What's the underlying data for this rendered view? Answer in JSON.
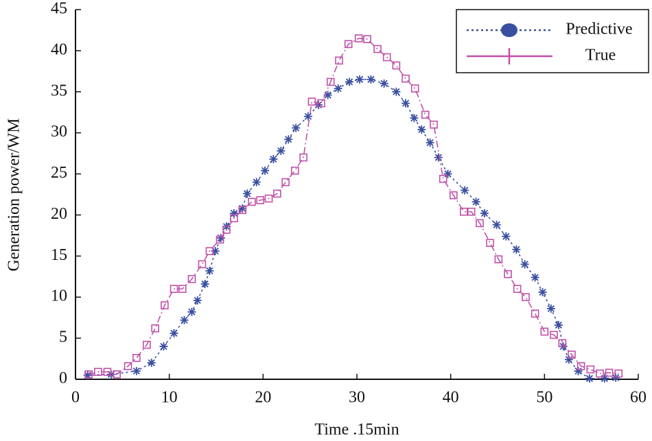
{
  "chart_data": {
    "type": "line",
    "xlabel": "Time .15min",
    "ylabel": "Generation power/WM",
    "xlim": [
      0,
      60
    ],
    "xticks": [
      0,
      10,
      20,
      30,
      40,
      50,
      60
    ],
    "ylim": [
      0,
      45
    ],
    "yticks": [
      0,
      5,
      10,
      15,
      20,
      25,
      30,
      35,
      40,
      45
    ],
    "legend": "upper right",
    "series": [
      {
        "name": "Predictive",
        "color": "#3a4fa0",
        "x": [
          1.3,
          3.8,
          6.5,
          8.1,
          9.4,
          10.5,
          11.6,
          12.4,
          13.0,
          13.8,
          14.3,
          14.9,
          15.5,
          16.1,
          16.9,
          17.8,
          18.3,
          19.3,
          20.2,
          21.1,
          21.9,
          22.7,
          23.5,
          24.8,
          25.9,
          26.9,
          28.0,
          29.2,
          30.3,
          31.5,
          32.9,
          34.2,
          35.2,
          36.1,
          36.9,
          37.8,
          38.7,
          39.7,
          41.5,
          42.7,
          43.6,
          44.9,
          45.9,
          47.0,
          47.9,
          49.0,
          49.8,
          50.7,
          51.5,
          52.0,
          52.6,
          53.6,
          54.8,
          56.4,
          57.6
        ],
        "values": [
          0.5,
          0.6,
          1.0,
          2.0,
          4.0,
          5.6,
          7.2,
          8.2,
          9.6,
          11.6,
          13.2,
          15.6,
          17.2,
          18.6,
          20.2,
          20.8,
          22.6,
          24.0,
          25.4,
          26.8,
          27.8,
          29.2,
          30.6,
          32.0,
          33.4,
          34.6,
          35.4,
          36.2,
          36.5,
          36.5,
          36.0,
          35.0,
          33.6,
          31.8,
          30.4,
          28.8,
          27.0,
          25.0,
          23.0,
          21.6,
          20.2,
          18.8,
          17.4,
          15.8,
          14.0,
          12.4,
          10.6,
          8.6,
          6.6,
          4.0,
          2.4,
          1.0,
          0.1,
          0.1,
          0.2
        ]
      },
      {
        "name": "True",
        "color": "#c050a8",
        "x": [
          1.4,
          2.4,
          3.4,
          4.4,
          5.6,
          6.5,
          7.6,
          8.5,
          9.5,
          10.5,
          11.4,
          12.4,
          13.5,
          14.3,
          15.4,
          16.1,
          16.9,
          17.8,
          18.8,
          19.7,
          20.6,
          21.5,
          22.4,
          23.4,
          24.3,
          25.2,
          26.2,
          27.2,
          28.1,
          29.1,
          30.2,
          31.1,
          32.2,
          33.2,
          34.2,
          35.2,
          36.2,
          37.3,
          38.2,
          39.2,
          40.3,
          41.4,
          42.2,
          43.1,
          44.2,
          45.1,
          46.1,
          47.1,
          48.0,
          49.0,
          50.0,
          51.0,
          51.9,
          52.9,
          53.9,
          54.9,
          55.9,
          56.9,
          57.9
        ],
        "values": [
          0.6,
          0.9,
          0.9,
          0.6,
          1.6,
          2.6,
          4.2,
          6.2,
          9.0,
          11.0,
          11.0,
          12.2,
          14.0,
          15.6,
          17.0,
          18.2,
          19.6,
          20.6,
          21.6,
          21.8,
          22.0,
          22.6,
          24.0,
          25.4,
          27.0,
          33.8,
          33.6,
          36.2,
          38.8,
          40.8,
          41.5,
          41.4,
          40.2,
          39.2,
          38.2,
          36.6,
          35.4,
          32.2,
          31.0,
          24.4,
          22.4,
          20.4,
          20.4,
          19.0,
          16.6,
          14.6,
          12.8,
          11.0,
          10.0,
          8.0,
          5.8,
          5.4,
          4.4,
          3.0,
          1.6,
          1.2,
          0.7,
          0.8,
          0.7
        ]
      }
    ]
  }
}
